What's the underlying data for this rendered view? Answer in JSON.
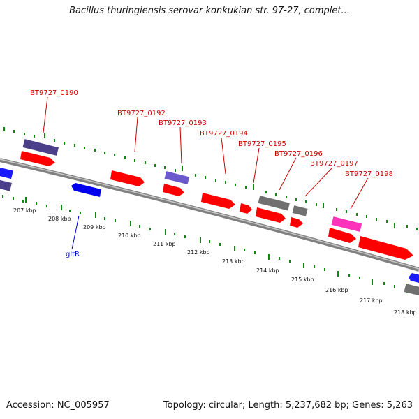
{
  "title": "Bacillus thuringiensis serovar konkukian str. 97-27, complet...",
  "footer": {
    "accession": "Accession: NC_005957",
    "topology": "Topology: circular; Length: 5,237,682 bp; Genes: 5,263"
  },
  "map": {
    "kbp_labels": [
      "207 kbp",
      "208 kbp",
      "209 kbp",
      "210 kbp",
      "211 kbp",
      "212 kbp",
      "213 kbp",
      "214 kbp",
      "215 kbp",
      "216 kbp",
      "217 kbp",
      "218 kbp"
    ],
    "gene_labels_top": [
      "BT9727_0190",
      "BT9727_0192",
      "BT9727_0193",
      "BT9727_0194",
      "BT9727_0195",
      "BT9727_0196",
      "BT9727_0197",
      "BT9727_0198"
    ],
    "gene_labels_bottom": [
      "gltR"
    ],
    "colors": {
      "backbone": "#808080",
      "cds": "#ff0000",
      "gene_dark": "#4b3f8a",
      "gene_light": "#6a5acd",
      "gene_gray": "#707070",
      "gene_pink": "#ff33bb",
      "gene_blue": "#0000ee",
      "tick_green": "#118811",
      "label_red": "#cc0000",
      "label_blue": "#0000cc"
    }
  }
}
